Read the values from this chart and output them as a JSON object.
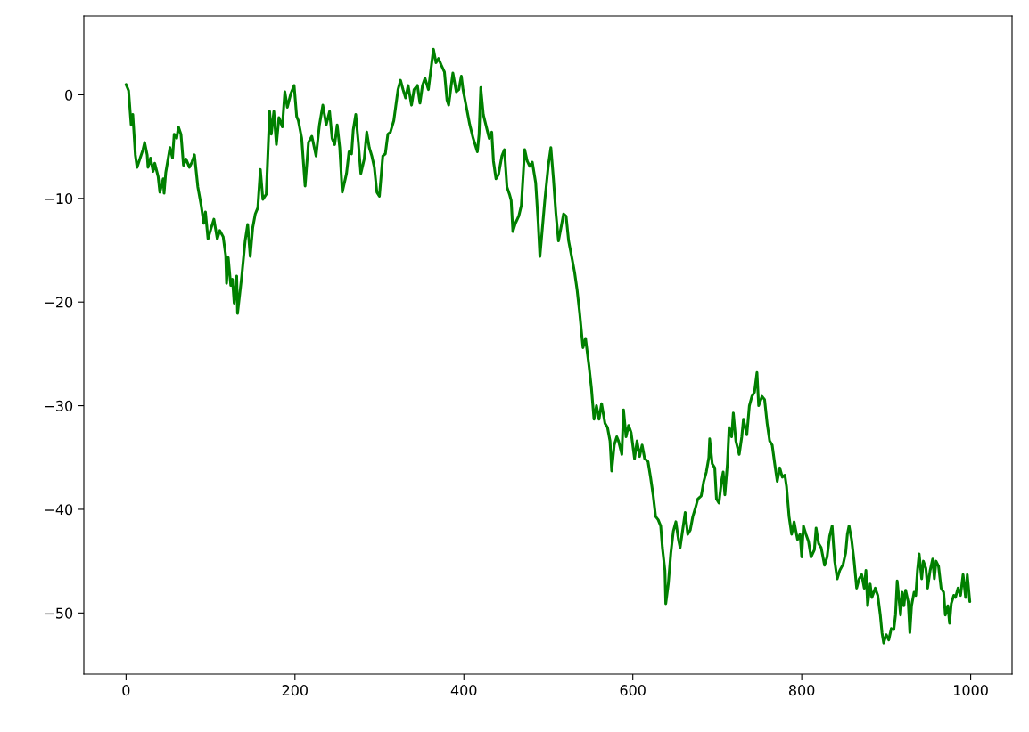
{
  "chart_data": {
    "type": "line",
    "x": [
      0,
      3,
      6,
      8,
      11,
      13,
      20,
      22,
      25,
      26,
      29,
      32,
      34,
      38,
      40,
      44,
      45,
      47,
      52,
      55,
      57,
      60,
      62,
      65,
      68,
      71,
      75,
      78,
      81,
      85,
      89,
      92,
      94,
      97,
      101,
      104,
      108,
      111,
      115,
      118,
      119,
      121,
      124,
      126,
      128,
      131,
      132,
      137,
      141,
      144,
      147,
      150,
      153,
      156,
      159,
      162,
      166,
      170,
      172,
      175,
      178,
      181,
      185,
      188,
      191,
      195,
      199,
      202,
      204,
      208,
      212,
      216,
      220,
      225,
      229,
      233,
      237,
      241,
      244,
      247,
      250,
      253,
      256,
      261,
      264,
      267,
      269,
      272,
      275,
      278,
      282,
      285,
      288,
      291,
      294,
      297,
      300,
      304,
      307,
      310,
      313,
      317,
      322,
      325,
      328,
      331,
      334,
      338,
      341,
      345,
      348,
      351,
      354,
      358,
      362,
      364,
      367,
      370,
      373,
      377,
      380,
      382,
      385,
      387,
      391,
      394,
      397,
      399,
      403,
      407,
      411,
      416,
      418,
      420,
      423,
      426,
      430,
      433,
      435,
      438,
      441,
      445,
      448,
      451,
      454,
      456,
      458,
      461,
      465,
      468,
      472,
      475,
      478,
      481,
      485,
      488,
      490,
      493,
      496,
      500,
      503,
      506,
      509,
      512,
      515,
      518,
      521,
      524,
      528,
      531,
      534,
      537,
      539,
      541,
      544,
      548,
      551,
      554,
      557,
      560,
      563,
      567,
      570,
      573,
      575,
      578,
      581,
      583,
      587,
      589,
      592,
      595,
      598,
      602,
      605,
      608,
      611,
      614,
      618,
      621,
      624,
      627,
      630,
      633,
      635,
      638,
      639,
      642,
      645,
      648,
      651,
      654,
      656,
      659,
      662,
      665,
      668,
      671,
      674,
      677,
      681,
      684,
      687,
      690,
      691,
      694,
      697,
      699,
      702,
      705,
      707,
      709,
      712,
      714,
      717,
      719,
      722,
      726,
      729,
      731,
      735,
      738,
      741,
      744,
      747,
      749,
      753,
      756,
      759,
      762,
      765,
      768,
      771,
      774,
      777,
      780,
      782,
      785,
      788,
      791,
      795,
      798,
      800,
      802,
      805,
      808,
      811,
      815,
      817,
      820,
      823,
      827,
      830,
      833,
      836,
      839,
      842,
      845,
      849,
      852,
      854,
      856,
      859,
      862,
      865,
      868,
      871,
      874,
      876,
      878,
      881,
      883,
      887,
      890,
      893,
      895,
      897,
      900,
      903,
      906,
      909,
      911,
      913,
      917,
      919,
      921,
      923,
      926,
      928,
      930,
      933,
      935,
      937,
      939,
      942,
      944,
      947,
      949,
      952,
      955,
      957,
      959,
      962,
      965,
      968,
      970,
      973,
      975,
      977,
      980,
      982,
      985,
      988,
      991,
      994,
      996,
      999
    ],
    "series": [
      {
        "color": "#008000",
        "values": [
          1.0,
          0.4,
          -2.9,
          -1.9,
          -5.8,
          -7.0,
          -5.3,
          -4.6,
          -5.8,
          -7.0,
          -6.1,
          -7.4,
          -6.6,
          -7.9,
          -9.4,
          -8.1,
          -9.5,
          -7.5,
          -5.1,
          -6.1,
          -3.8,
          -4.2,
          -3.1,
          -3.8,
          -6.8,
          -6.2,
          -7.0,
          -6.5,
          -5.8,
          -8.9,
          -10.7,
          -12.4,
          -11.3,
          -13.9,
          -12.8,
          -12.0,
          -13.9,
          -13.1,
          -13.7,
          -15.5,
          -18.2,
          -15.7,
          -18.4,
          -17.8,
          -20.1,
          -17.5,
          -21.1,
          -17.5,
          -14.1,
          -12.5,
          -15.6,
          -12.8,
          -11.5,
          -10.9,
          -7.2,
          -10.1,
          -9.6,
          -1.6,
          -3.8,
          -1.6,
          -4.8,
          -2.2,
          -3.1,
          0.3,
          -1.2,
          0.1,
          0.9,
          -2.1,
          -2.5,
          -4.2,
          -8.8,
          -4.6,
          -4.0,
          -5.9,
          -2.9,
          -1.0,
          -2.9,
          -1.6,
          -4.2,
          -4.8,
          -2.9,
          -5.1,
          -9.4,
          -7.6,
          -5.5,
          -5.7,
          -3.4,
          -1.9,
          -4.6,
          -7.6,
          -6.2,
          -3.6,
          -5.1,
          -5.9,
          -7.0,
          -9.4,
          -9.8,
          -5.9,
          -5.7,
          -3.8,
          -3.6,
          -2.5,
          0.5,
          1.4,
          0.5,
          -0.3,
          0.9,
          -1.0,
          0.5,
          0.9,
          -0.8,
          0.9,
          1.6,
          0.5,
          3.1,
          4.4,
          3.1,
          3.5,
          2.9,
          2.2,
          -0.5,
          -1.0,
          0.9,
          2.1,
          0.3,
          0.5,
          1.8,
          0.5,
          -1.2,
          -2.9,
          -4.2,
          -5.5,
          -3.8,
          0.7,
          -1.9,
          -2.9,
          -4.2,
          -3.6,
          -6.4,
          -8.1,
          -7.7,
          -5.9,
          -5.3,
          -8.9,
          -9.6,
          -10.2,
          -13.2,
          -12.4,
          -11.7,
          -10.7,
          -5.3,
          -6.4,
          -6.9,
          -6.5,
          -8.5,
          -12.4,
          -15.6,
          -12.8,
          -10.0,
          -6.8,
          -5.1,
          -8.1,
          -11.5,
          -14.1,
          -12.8,
          -11.5,
          -11.7,
          -14.1,
          -15.8,
          -17.1,
          -18.8,
          -21.0,
          -22.7,
          -24.4,
          -23.5,
          -26.1,
          -28.3,
          -31.3,
          -30.0,
          -31.3,
          -29.8,
          -31.7,
          -32.1,
          -33.4,
          -36.3,
          -33.8,
          -33.0,
          -33.4,
          -34.7,
          -30.4,
          -33.0,
          -31.9,
          -32.6,
          -35.1,
          -33.4,
          -34.9,
          -33.8,
          -35.1,
          -35.4,
          -36.9,
          -38.6,
          -40.7,
          -41.0,
          -41.6,
          -43.7,
          -45.9,
          -49.1,
          -47.2,
          -44.2,
          -42.1,
          -41.2,
          -42.9,
          -43.7,
          -42.0,
          -40.3,
          -42.4,
          -42.0,
          -40.7,
          -39.9,
          -39.0,
          -38.7,
          -37.3,
          -36.4,
          -35.0,
          -33.2,
          -35.6,
          -36.0,
          -39.0,
          -39.4,
          -37.3,
          -36.4,
          -38.6,
          -35.6,
          -32.1,
          -33.0,
          -30.7,
          -33.4,
          -34.7,
          -33.0,
          -31.3,
          -32.8,
          -30.0,
          -29.1,
          -28.7,
          -26.8,
          -30.0,
          -29.1,
          -29.4,
          -31.7,
          -33.4,
          -33.8,
          -35.6,
          -37.3,
          -36.0,
          -36.9,
          -36.7,
          -37.8,
          -40.7,
          -42.4,
          -41.2,
          -42.9,
          -42.4,
          -44.6,
          -41.6,
          -42.4,
          -43.1,
          -44.6,
          -43.9,
          -41.8,
          -43.3,
          -43.7,
          -45.4,
          -44.6,
          -42.6,
          -41.6,
          -45.0,
          -46.7,
          -45.9,
          -45.3,
          -44.2,
          -42.4,
          -41.6,
          -42.9,
          -45.0,
          -47.6,
          -46.7,
          -46.3,
          -47.6,
          -45.9,
          -49.3,
          -47.2,
          -48.5,
          -47.6,
          -48.3,
          -50.2,
          -51.9,
          -52.9,
          -52.1,
          -52.6,
          -51.5,
          -51.6,
          -50.2,
          -46.9,
          -50.2,
          -48.0,
          -49.3,
          -47.8,
          -48.9,
          -51.9,
          -49.3,
          -48.0,
          -48.3,
          -45.9,
          -44.3,
          -46.7,
          -45.0,
          -45.7,
          -47.6,
          -45.9,
          -44.8,
          -46.7,
          -45.0,
          -45.5,
          -47.6,
          -48.0,
          -50.2,
          -49.3,
          -51.0,
          -49.1,
          -48.3,
          -48.5,
          -47.6,
          -48.3,
          -46.3,
          -48.5,
          -46.3,
          -48.9
        ]
      }
    ],
    "xlim": [
      -50,
      1049
    ],
    "ylim": [
      -55.9,
      7.6
    ],
    "xticks": [
      0,
      200,
      400,
      600,
      800,
      1000
    ],
    "yticks": [
      0,
      {
        "value": -10,
        "label": "−10"
      },
      {
        "value": -20,
        "label": "−20"
      },
      {
        "value": -30,
        "label": "−30"
      },
      {
        "value": -40,
        "label": "−40"
      },
      {
        "value": -50,
        "label": "−50"
      }
    ],
    "line_style": "solid"
  }
}
